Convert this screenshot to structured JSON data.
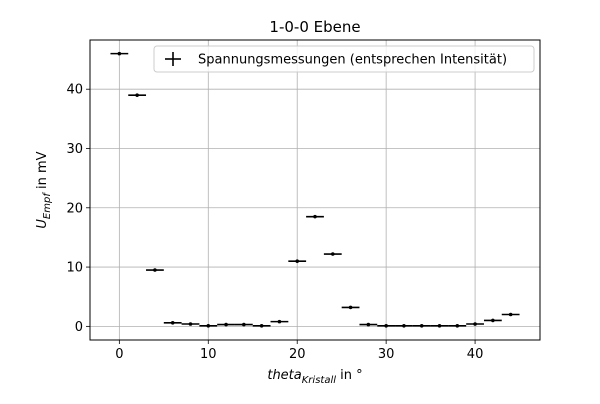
{
  "chart_data": {
    "type": "scatter",
    "title": "1-0-0 Ebene",
    "xlabel": {
      "main": "theta",
      "sub": "Kristall",
      "suffix": " in °"
    },
    "ylabel": {
      "main": "U",
      "sub": "Empf",
      "suffix": " in mV"
    },
    "xlim": [
      -3.3,
      47.3
    ],
    "ylim": [
      -2.3,
      48.3
    ],
    "xticks": [
      0,
      10,
      20,
      30,
      40
    ],
    "yticks": [
      0,
      10,
      20,
      30,
      40
    ],
    "grid": true,
    "legend_position": "top-right",
    "x_error": 1,
    "series": [
      {
        "name": "Spannungsmessungen (entsprechen Intensität)",
        "color": "#000000",
        "x": [
          0,
          2,
          4,
          6,
          8,
          10,
          12,
          14,
          16,
          18,
          20,
          22,
          24,
          26,
          28,
          30,
          32,
          34,
          36,
          38,
          40,
          42,
          44
        ],
        "y": [
          46,
          39,
          9.5,
          0.6,
          0.4,
          0.1,
          0.3,
          0.3,
          0.1,
          0.8,
          11,
          18.5,
          12.2,
          3.2,
          0.3,
          0.1,
          0.1,
          0.1,
          0.1,
          0.1,
          0.4,
          1.0,
          2.0
        ]
      }
    ]
  }
}
